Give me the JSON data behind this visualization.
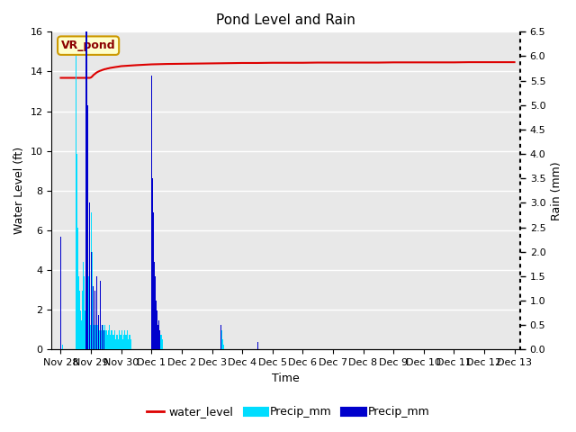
{
  "title": "Pond Level and Rain",
  "xlabel": "Time",
  "ylabel_left": "Water Level (ft)",
  "ylabel_right": "Rain (mm)",
  "annotation_text": "VR_pond",
  "ylim_left": [
    0,
    16
  ],
  "ylim_right": [
    0,
    6.5
  ],
  "yticks_left": [
    0,
    2,
    4,
    6,
    8,
    10,
    12,
    14,
    16
  ],
  "yticks_right": [
    0.0,
    0.5,
    1.0,
    1.5,
    2.0,
    2.5,
    3.0,
    3.5,
    4.0,
    4.5,
    5.0,
    5.5,
    6.0,
    6.5
  ],
  "background_color": "#e8e8e8",
  "water_level_color": "#dd0000",
  "precip_cyan_color": "#00ddff",
  "precip_blue_color": "#0000cc",
  "x_tick_labels": [
    "Nov 28",
    "Nov 29",
    "Nov 30",
    "Dec 1",
    "Dec 2",
    "Dec 3",
    "Dec 4",
    "Dec 5",
    "Dec 6",
    "Dec 7",
    "Dec 8",
    "Dec 9",
    "Dec 10",
    "Dec 11",
    "Dec 12",
    "Dec 13"
  ],
  "water_level_x": [
    0.0,
    0.04,
    0.08,
    0.12,
    0.17,
    0.21,
    0.25,
    0.29,
    0.33,
    0.38,
    0.42,
    0.46,
    0.5,
    0.54,
    0.58,
    0.63,
    0.67,
    0.71,
    0.75,
    0.79,
    0.83,
    0.88,
    0.92,
    0.96,
    1.0,
    1.04,
    1.08,
    1.13,
    1.17,
    1.21,
    1.25,
    1.29,
    1.33,
    1.38,
    1.42,
    1.46,
    1.5,
    1.54,
    1.58,
    1.63,
    1.67,
    1.71,
    1.75,
    1.79,
    1.83,
    1.88,
    1.92,
    1.96,
    2.0,
    2.5,
    3.0,
    3.5,
    4.0,
    4.5,
    5.0,
    5.5,
    6.0,
    6.5,
    7.0,
    7.5,
    8.0,
    8.5,
    9.0,
    9.5,
    10.0,
    10.5,
    11.0,
    11.5,
    12.0,
    12.5,
    13.0,
    13.5,
    14.0,
    14.5,
    15.0
  ],
  "water_level_y": [
    13.68,
    13.68,
    13.68,
    13.68,
    13.68,
    13.68,
    13.68,
    13.68,
    13.68,
    13.68,
    13.68,
    13.68,
    13.68,
    13.68,
    13.68,
    13.68,
    13.68,
    13.68,
    13.68,
    13.68,
    13.68,
    13.68,
    13.68,
    13.68,
    13.7,
    13.75,
    13.82,
    13.88,
    13.93,
    13.97,
    14.0,
    14.03,
    14.05,
    14.08,
    14.1,
    14.12,
    14.13,
    14.15,
    14.16,
    14.18,
    14.19,
    14.2,
    14.21,
    14.22,
    14.23,
    14.24,
    14.25,
    14.26,
    14.27,
    14.32,
    14.36,
    14.38,
    14.39,
    14.4,
    14.41,
    14.42,
    14.43,
    14.43,
    14.44,
    14.44,
    14.44,
    14.45,
    14.45,
    14.45,
    14.45,
    14.45,
    14.46,
    14.46,
    14.46,
    14.46,
    14.46,
    14.47,
    14.47,
    14.47,
    14.47
  ],
  "precip_cyan_x": [
    0.0,
    0.02,
    0.04,
    0.06,
    0.5,
    0.52,
    0.54,
    0.56,
    0.58,
    0.6,
    0.62,
    0.64,
    0.66,
    0.68,
    0.7,
    0.72,
    0.74,
    0.76,
    0.78,
    0.8,
    0.82,
    0.84,
    0.86,
    0.88,
    0.9,
    0.92,
    0.94,
    0.96,
    0.98,
    1.0,
    1.02,
    1.04,
    1.06,
    1.08,
    1.1,
    1.12,
    1.14,
    1.16,
    1.18,
    1.2,
    1.22,
    1.24,
    1.26,
    1.28,
    1.3,
    1.32,
    1.34,
    1.36,
    1.38,
    1.4,
    1.42,
    1.44,
    1.46,
    1.48,
    1.5,
    1.52,
    1.54,
    1.56,
    1.58,
    1.6,
    1.62,
    1.64,
    1.66,
    1.68,
    1.7,
    1.72,
    1.74,
    1.76,
    1.78,
    1.8,
    1.82,
    1.84,
    1.86,
    1.88,
    1.9,
    1.92,
    1.94,
    1.96,
    1.98,
    2.0,
    2.02,
    2.04,
    2.06,
    2.08,
    2.1,
    2.12,
    2.14,
    2.16,
    2.18,
    2.2,
    2.22,
    2.24,
    2.26,
    2.28,
    2.3,
    2.32,
    3.0,
    3.02,
    3.04,
    3.06,
    3.08,
    3.1,
    3.12,
    3.14,
    3.16,
    3.18,
    3.2,
    3.22,
    3.24,
    3.26,
    3.28,
    3.3,
    3.32,
    3.34,
    3.36,
    3.38,
    5.3,
    5.32,
    5.34,
    5.36,
    5.38,
    6.5
  ],
  "precip_cyan_y": [
    2.3,
    1.5,
    0.5,
    0.1,
    6.0,
    5.5,
    4.0,
    2.5,
    1.8,
    1.5,
    1.2,
    1.0,
    0.8,
    0.6,
    0.5,
    1.2,
    1.8,
    2.2,
    1.5,
    0.8,
    0.4,
    0.3,
    0.5,
    0.8,
    1.2,
    1.5,
    1.0,
    0.7,
    0.5,
    1.2,
    2.8,
    2.0,
    1.3,
    0.8,
    0.5,
    0.3,
    0.4,
    0.5,
    0.6,
    0.8,
    0.5,
    0.3,
    0.2,
    0.4,
    0.5,
    0.6,
    0.4,
    0.3,
    0.4,
    0.5,
    0.3,
    0.2,
    0.5,
    0.4,
    0.5,
    0.4,
    0.3,
    0.2,
    0.4,
    0.5,
    0.4,
    0.3,
    0.4,
    0.5,
    0.4,
    0.3,
    0.2,
    0.3,
    0.4,
    0.3,
    0.2,
    0.3,
    0.4,
    0.3,
    0.2,
    0.3,
    0.4,
    0.3,
    0.2,
    0.3,
    0.4,
    0.3,
    0.2,
    0.3,
    0.5,
    0.4,
    0.3,
    0.2,
    0.3,
    0.4,
    0.3,
    0.2,
    0.3,
    0.4,
    0.3,
    0.2,
    2.3,
    2.0,
    1.5,
    1.0,
    0.7,
    0.5,
    0.8,
    1.0,
    0.8,
    0.6,
    0.4,
    0.3,
    0.4,
    0.5,
    0.4,
    0.3,
    0.4,
    0.3,
    0.2,
    0.1,
    0.5,
    0.4,
    0.3,
    0.2,
    0.1,
    0.2
  ],
  "precip_blue_x": [
    0.0,
    0.83,
    0.85,
    0.87,
    0.89,
    0.91,
    0.93,
    0.95,
    0.97,
    0.99,
    1.01,
    1.03,
    1.05,
    1.07,
    1.09,
    1.11,
    1.13,
    1.15,
    1.17,
    1.19,
    1.21,
    1.23,
    1.25,
    1.27,
    1.29,
    1.31,
    1.33,
    1.35,
    1.37,
    1.39,
    1.41,
    1.43,
    1.45,
    1.47,
    3.0,
    3.02,
    3.04,
    3.06,
    3.08,
    3.1,
    3.12,
    3.14,
    3.16,
    3.18,
    3.2,
    3.22,
    3.24,
    3.26,
    3.28,
    5.3,
    5.32,
    6.5,
    6.52
  ],
  "precip_blue_y": [
    2.3,
    15.0,
    10.0,
    7.0,
    5.0,
    4.0,
    3.5,
    3.0,
    2.5,
    2.2,
    2.0,
    1.8,
    1.5,
    1.3,
    1.0,
    0.9,
    1.2,
    1.5,
    1.8,
    1.5,
    1.0,
    0.8,
    0.7,
    0.6,
    1.0,
    1.4,
    1.2,
    0.8,
    0.5,
    0.4,
    0.5,
    0.4,
    0.3,
    0.2,
    5.6,
    4.5,
    3.5,
    2.8,
    2.2,
    1.8,
    1.5,
    1.2,
    1.0,
    0.8,
    0.6,
    0.5,
    0.6,
    0.5,
    0.4,
    0.5,
    0.4,
    0.25,
    0.15
  ],
  "legend_entries": [
    "water_level",
    "Precip_mm",
    "Precip_mm"
  ],
  "legend_colors": [
    "#dd0000",
    "#00ddff",
    "#0000cc"
  ]
}
